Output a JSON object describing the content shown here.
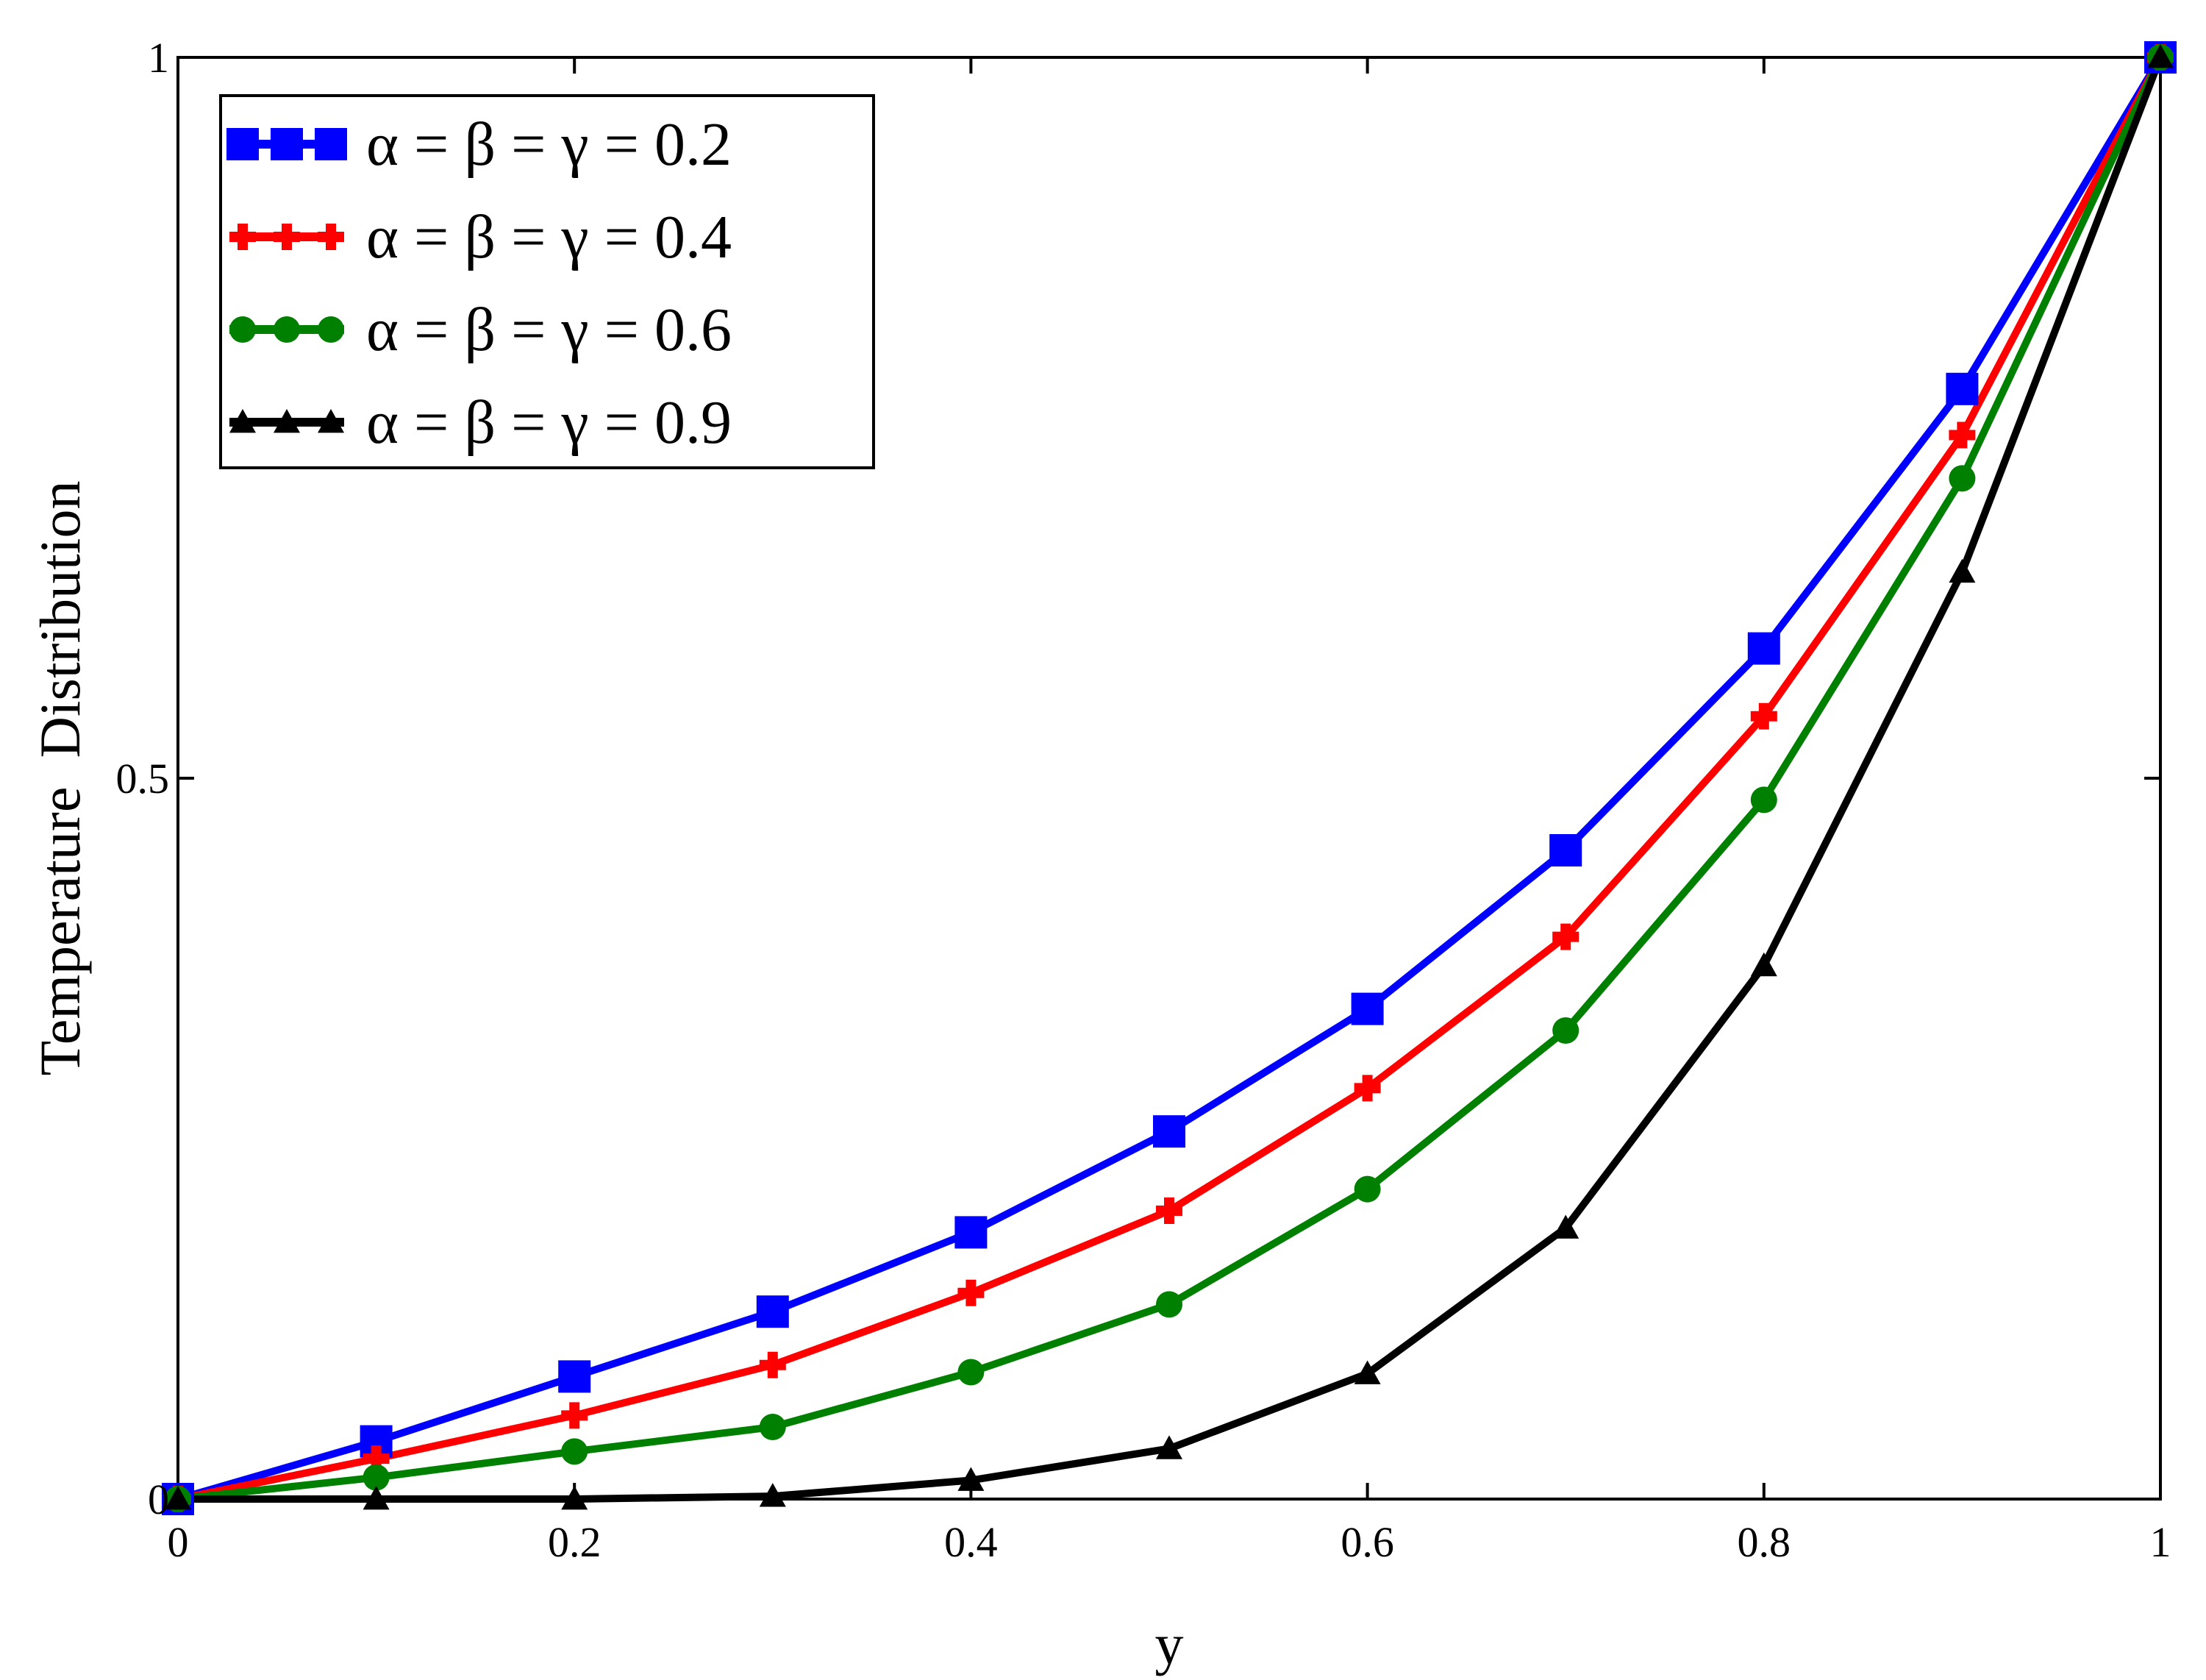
{
  "chart_data": {
    "type": "line",
    "xlabel": "y",
    "ylabel": "Temperature  Distribution",
    "xlim": [
      0,
      1
    ],
    "ylim": [
      0,
      1
    ],
    "xticks": [
      "0",
      "0.2",
      "0.4",
      "0.6",
      "0.8",
      "1"
    ],
    "xtick_values": [
      0,
      0.2,
      0.4,
      0.6,
      0.8,
      1
    ],
    "yticks": [
      "0",
      "0.5",
      "1"
    ],
    "ytick_values": [
      0,
      0.5,
      1
    ],
    "grid": false,
    "legend_position": "top-left",
    "x": [
      0,
      0.1,
      0.2,
      0.3,
      0.4,
      0.5,
      0.6,
      0.7,
      0.8,
      0.9,
      1.0
    ],
    "series": [
      {
        "name": "α = β = γ = 0.2",
        "color": "#0000ff",
        "marker": "square",
        "values": [
          0.0,
          0.04,
          0.085,
          0.13,
          0.185,
          0.255,
          0.34,
          0.45,
          0.59,
          0.77,
          1.0
        ]
      },
      {
        "name": "α = β = γ = 0.4",
        "color": "#ff0000",
        "marker": "plus",
        "values": [
          0.0,
          0.028,
          0.058,
          0.093,
          0.143,
          0.2,
          0.285,
          0.39,
          0.543,
          0.738,
          1.0
        ]
      },
      {
        "name": "α = β = γ = 0.6",
        "color": "#008000",
        "marker": "circle",
        "values": [
          0.0,
          0.015,
          0.033,
          0.05,
          0.088,
          0.135,
          0.215,
          0.325,
          0.485,
          0.708,
          1.0
        ]
      },
      {
        "name": "α = β = γ = 0.9",
        "color": "#000000",
        "marker": "triangle",
        "values": [
          0.0,
          0.0,
          0.0,
          0.002,
          0.013,
          0.035,
          0.087,
          0.188,
          0.37,
          0.643,
          1.0
        ]
      }
    ]
  }
}
